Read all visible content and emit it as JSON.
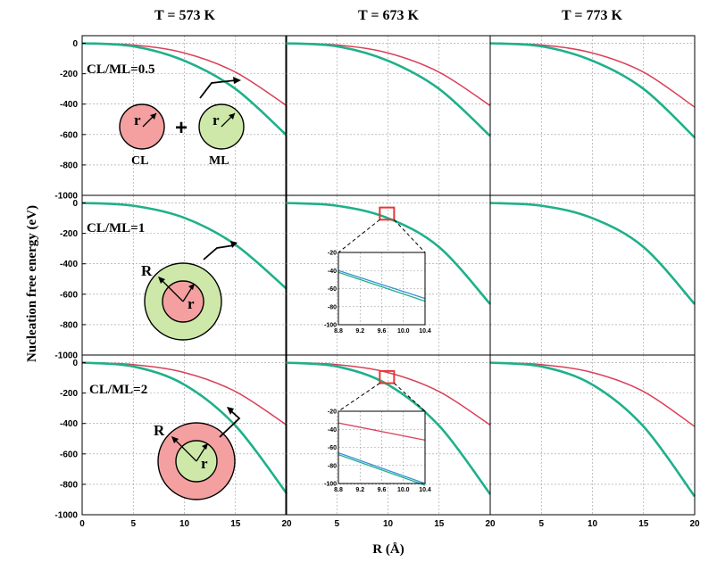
{
  "figure": {
    "ylabel": "Nucleation free energy (eV)",
    "xlabel": "R (Å)",
    "col_titles": [
      "T = 573 K",
      "T = 673 K",
      "T = 773 K"
    ],
    "row_labels": [
      "CL/ML=0.5",
      "CL/ML=1",
      "CL/ML=2"
    ],
    "legend_circle_labels": {
      "core": "r",
      "shell": "R",
      "plus": "+",
      "cl": "CL",
      "ml": "ML"
    },
    "colors": {
      "red_series": "#d9415a",
      "green_series": "#1fb08a",
      "blue_series": "#3a8fd8",
      "cl_fill": "#f4a0a0",
      "ml_fill": "#cde8a8",
      "highlight": "#e53935"
    }
  },
  "chart_data": [
    {
      "type": "line",
      "row": 0,
      "col": 0,
      "xlim": [
        0,
        20
      ],
      "ylim": [
        -1000,
        50
      ],
      "x_ticks": [
        0,
        5,
        10,
        15,
        20
      ],
      "y_ticks": [
        0,
        -200,
        -400,
        -600,
        -800,
        -1000
      ],
      "series": [
        {
          "color": "#d9415a",
          "x": [
            0,
            5,
            10,
            15,
            20
          ],
          "y": [
            0,
            -11,
            -64,
            -190,
            -410
          ]
        },
        {
          "color": "#1fb08a",
          "x": [
            0,
            5,
            10,
            15,
            20
          ],
          "y": [
            0,
            -20,
            -115,
            -300,
            -605
          ]
        }
      ]
    },
    {
      "type": "line",
      "row": 0,
      "col": 1,
      "xlim": [
        0,
        20
      ],
      "ylim": [
        -1000,
        50
      ],
      "x_ticks": [
        0,
        5,
        10,
        15,
        20
      ],
      "y_ticks": [
        0,
        -200,
        -400,
        -600,
        -800,
        -1000
      ],
      "series": [
        {
          "color": "#d9415a",
          "x": [
            0,
            5,
            10,
            15,
            20
          ],
          "y": [
            0,
            -11,
            -64,
            -190,
            -410
          ]
        },
        {
          "color": "#1fb08a",
          "x": [
            0,
            5,
            10,
            15,
            20
          ],
          "y": [
            0,
            -20,
            -115,
            -300,
            -610
          ]
        }
      ]
    },
    {
      "type": "line",
      "row": 0,
      "col": 2,
      "xlim": [
        0,
        20
      ],
      "ylim": [
        -1000,
        50
      ],
      "x_ticks": [
        0,
        5,
        10,
        15,
        20
      ],
      "y_ticks": [
        0,
        -200,
        -400,
        -600,
        -800,
        -1000
      ],
      "series": [
        {
          "color": "#d9415a",
          "x": [
            0,
            5,
            10,
            15,
            20
          ],
          "y": [
            0,
            -11,
            -64,
            -190,
            -420
          ]
        },
        {
          "color": "#1fb08a",
          "x": [
            0,
            5,
            10,
            15,
            20
          ],
          "y": [
            0,
            -20,
            -115,
            -300,
            -620
          ]
        }
      ]
    },
    {
      "type": "line",
      "row": 1,
      "col": 0,
      "xlim": [
        0,
        20
      ],
      "ylim": [
        -1000,
        50
      ],
      "x_ticks": [
        0,
        5,
        10,
        15,
        20
      ],
      "y_ticks": [
        0,
        -200,
        -400,
        -600,
        -800,
        -1000
      ],
      "series": [
        {
          "color": "#1fb08a",
          "x": [
            0,
            5,
            10,
            15,
            20
          ],
          "y": [
            0,
            -18,
            -98,
            -275,
            -565
          ]
        }
      ]
    },
    {
      "type": "line",
      "row": 1,
      "col": 1,
      "xlim": [
        0,
        20
      ],
      "ylim": [
        -1000,
        50
      ],
      "x_ticks": [
        0,
        5,
        10,
        15,
        20
      ],
      "y_ticks": [
        0,
        -200,
        -400,
        -600,
        -800,
        -1000
      ],
      "series": [
        {
          "color": "#1fb08a",
          "x": [
            0,
            5,
            10,
            15,
            20
          ],
          "y": [
            0,
            -18,
            -100,
            -290,
            -665
          ]
        }
      ],
      "highlight_box": {
        "x": [
          9.2,
          10.6
        ],
        "y": [
          -30,
          -110
        ]
      }
    },
    {
      "type": "line",
      "row": 1,
      "col": 2,
      "xlim": [
        0,
        20
      ],
      "ylim": [
        -1000,
        50
      ],
      "x_ticks": [
        0,
        5,
        10,
        15,
        20
      ],
      "y_ticks": [
        0,
        -200,
        -400,
        -600,
        -800,
        -1000
      ],
      "series": [
        {
          "color": "#1fb08a",
          "x": [
            0,
            5,
            10,
            15,
            20
          ],
          "y": [
            0,
            -18,
            -100,
            -290,
            -665
          ]
        }
      ]
    },
    {
      "type": "line",
      "row": 2,
      "col": 0,
      "xlim": [
        0,
        20
      ],
      "ylim": [
        -1000,
        50
      ],
      "x_ticks": [
        0,
        5,
        10,
        15,
        20
      ],
      "y_ticks": [
        0,
        -200,
        -400,
        -600,
        -800,
        -1000
      ],
      "series": [
        {
          "color": "#d9415a",
          "x": [
            0,
            5,
            10,
            15,
            20
          ],
          "y": [
            0,
            -13,
            -65,
            -190,
            -410
          ]
        },
        {
          "color": "#1fb08a",
          "x": [
            0,
            5,
            10,
            15,
            20
          ],
          "y": [
            0,
            -25,
            -145,
            -415,
            -860
          ]
        }
      ]
    },
    {
      "type": "line",
      "row": 2,
      "col": 1,
      "xlim": [
        0,
        20
      ],
      "ylim": [
        -1000,
        50
      ],
      "x_ticks": [
        0,
        5,
        10,
        15,
        20
      ],
      "y_ticks": [
        0,
        -200,
        -400,
        -600,
        -800,
        -1000
      ],
      "series": [
        {
          "color": "#d9415a",
          "x": [
            0,
            5,
            10,
            15,
            20
          ],
          "y": [
            0,
            -13,
            -65,
            -190,
            -410
          ]
        },
        {
          "color": "#1fb08a",
          "x": [
            0,
            5,
            10,
            15,
            20
          ],
          "y": [
            0,
            -25,
            -145,
            -415,
            -865
          ]
        }
      ],
      "highlight_box": {
        "x": [
          9.2,
          10.6
        ],
        "y": [
          -55,
          -135
        ]
      }
    },
    {
      "type": "line",
      "row": 2,
      "col": 2,
      "xlim": [
        0,
        20
      ],
      "ylim": [
        -1000,
        50
      ],
      "x_ticks": [
        0,
        5,
        10,
        15,
        20
      ],
      "y_ticks": [
        0,
        -200,
        -400,
        -600,
        -800,
        -1000
      ],
      "series": [
        {
          "color": "#d9415a",
          "x": [
            0,
            5,
            10,
            15,
            20
          ],
          "y": [
            0,
            -13,
            -65,
            -190,
            -420
          ]
        },
        {
          "color": "#1fb08a",
          "x": [
            0,
            5,
            10,
            15,
            20
          ],
          "y": [
            0,
            -25,
            -145,
            -420,
            -880
          ]
        }
      ]
    },
    {
      "type": "line",
      "inset_of": [
        1,
        1
      ],
      "xlim": [
        8.8,
        10.4
      ],
      "ylim": [
        -100,
        -20
      ],
      "x_ticks": [
        8.8,
        9.2,
        9.6,
        10.0,
        10.4
      ],
      "y_ticks": [
        -20,
        -40,
        -60,
        -80,
        -100
      ],
      "series": [
        {
          "color": "#3a8fd8",
          "x": [
            8.8,
            10.4
          ],
          "y": [
            -40,
            -71
          ]
        },
        {
          "color": "#1fb08a",
          "x": [
            8.8,
            10.4
          ],
          "y": [
            -42,
            -74
          ]
        }
      ]
    },
    {
      "type": "line",
      "inset_of": [
        2,
        1
      ],
      "xlim": [
        8.8,
        10.4
      ],
      "ylim": [
        -100,
        -20
      ],
      "x_ticks": [
        8.8,
        9.2,
        9.6,
        10.0,
        10.4
      ],
      "y_ticks": [
        -20,
        -40,
        -60,
        -80,
        -100
      ],
      "series": [
        {
          "color": "#d9415a",
          "x": [
            8.8,
            10.4
          ],
          "y": [
            -33,
            -52
          ]
        },
        {
          "color": "#3a8fd8",
          "x": [
            8.8,
            10.4
          ],
          "y": [
            -66,
            -100
          ]
        },
        {
          "color": "#1fb08a",
          "x": [
            8.8,
            10.4
          ],
          "y": [
            -68,
            -102
          ]
        }
      ]
    }
  ]
}
